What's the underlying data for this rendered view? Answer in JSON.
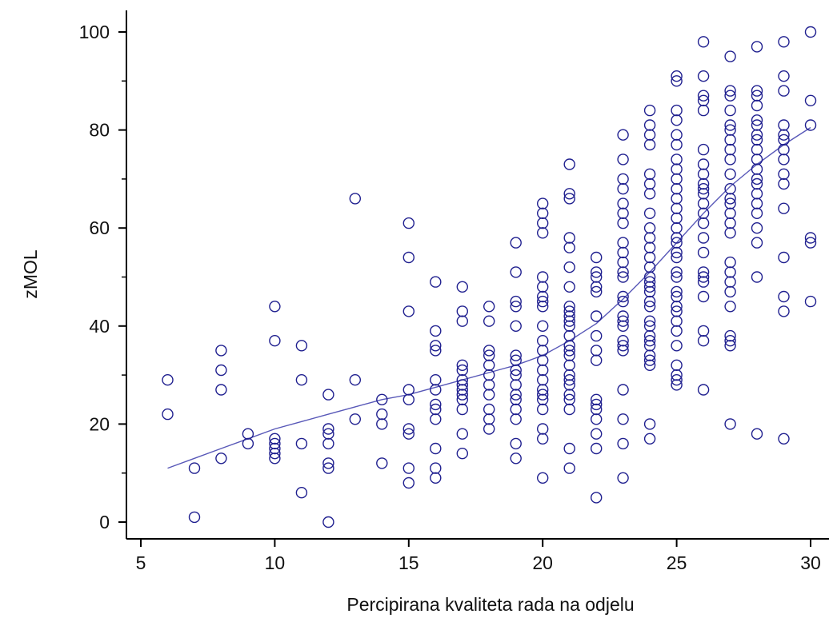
{
  "chart_data": {
    "type": "scatter",
    "title": "",
    "xlabel": "Percipirana kvaliteta rada na odjelu",
    "ylabel": "zMOL",
    "xlim": [
      4,
      30.6
    ],
    "ylim": [
      -3,
      103
    ],
    "xticks": [
      5,
      10,
      15,
      20,
      25,
      30
    ],
    "yticks": [
      0,
      20,
      40,
      60,
      80,
      100
    ],
    "grid": false,
    "legend": "none",
    "colors": {
      "points": "#1f1f8f",
      "line": "#5858b8",
      "axis": "#000000"
    },
    "points": [
      [
        6,
        29
      ],
      [
        6,
        22
      ],
      [
        7,
        11
      ],
      [
        7,
        1
      ],
      [
        8,
        35
      ],
      [
        8,
        31
      ],
      [
        8,
        27
      ],
      [
        8,
        13
      ],
      [
        9,
        18
      ],
      [
        9,
        16
      ],
      [
        10,
        44
      ],
      [
        10,
        37
      ],
      [
        10,
        17
      ],
      [
        10,
        16
      ],
      [
        10,
        15
      ],
      [
        10,
        14
      ],
      [
        10,
        13
      ],
      [
        11,
        36
      ],
      [
        11,
        29
      ],
      [
        11,
        16
      ],
      [
        11,
        6
      ],
      [
        12,
        26
      ],
      [
        12,
        19
      ],
      [
        12,
        18
      ],
      [
        12,
        16
      ],
      [
        12,
        12
      ],
      [
        12,
        11
      ],
      [
        12,
        0
      ],
      [
        13,
        66
      ],
      [
        13,
        29
      ],
      [
        13,
        21
      ],
      [
        14,
        25
      ],
      [
        14,
        22
      ],
      [
        14,
        20
      ],
      [
        14,
        12
      ],
      [
        15,
        61
      ],
      [
        15,
        54
      ],
      [
        15,
        43
      ],
      [
        15,
        27
      ],
      [
        15,
        25
      ],
      [
        15,
        19
      ],
      [
        15,
        18
      ],
      [
        15,
        11
      ],
      [
        15,
        8
      ],
      [
        16,
        49
      ],
      [
        16,
        39
      ],
      [
        16,
        36
      ],
      [
        16,
        35
      ],
      [
        16,
        29
      ],
      [
        16,
        27
      ],
      [
        16,
        24
      ],
      [
        16,
        23
      ],
      [
        16,
        21
      ],
      [
        16,
        15
      ],
      [
        16,
        11
      ],
      [
        16,
        9
      ],
      [
        17,
        48
      ],
      [
        17,
        43
      ],
      [
        17,
        41
      ],
      [
        17,
        32
      ],
      [
        17,
        31
      ],
      [
        17,
        29
      ],
      [
        17,
        28
      ],
      [
        17,
        27
      ],
      [
        17,
        26
      ],
      [
        17,
        25
      ],
      [
        17,
        23
      ],
      [
        17,
        18
      ],
      [
        17,
        14
      ],
      [
        18,
        44
      ],
      [
        18,
        41
      ],
      [
        18,
        35
      ],
      [
        18,
        34
      ],
      [
        18,
        32
      ],
      [
        18,
        30
      ],
      [
        18,
        28
      ],
      [
        18,
        26
      ],
      [
        18,
        23
      ],
      [
        18,
        21
      ],
      [
        18,
        19
      ],
      [
        19,
        57
      ],
      [
        19,
        51
      ],
      [
        19,
        45
      ],
      [
        19,
        44
      ],
      [
        19,
        40
      ],
      [
        19,
        34
      ],
      [
        19,
        33
      ],
      [
        19,
        31
      ],
      [
        19,
        30
      ],
      [
        19,
        28
      ],
      [
        19,
        26
      ],
      [
        19,
        25
      ],
      [
        19,
        23
      ],
      [
        19,
        21
      ],
      [
        19,
        16
      ],
      [
        19,
        13
      ],
      [
        20,
        65
      ],
      [
        20,
        63
      ],
      [
        20,
        61
      ],
      [
        20,
        59
      ],
      [
        20,
        50
      ],
      [
        20,
        48
      ],
      [
        20,
        46
      ],
      [
        20,
        45
      ],
      [
        20,
        44
      ],
      [
        20,
        40
      ],
      [
        20,
        37
      ],
      [
        20,
        35
      ],
      [
        20,
        33
      ],
      [
        20,
        31
      ],
      [
        20,
        29
      ],
      [
        20,
        27
      ],
      [
        20,
        26
      ],
      [
        20,
        25
      ],
      [
        20,
        23
      ],
      [
        20,
        19
      ],
      [
        20,
        17
      ],
      [
        20,
        9
      ],
      [
        21,
        73
      ],
      [
        21,
        67
      ],
      [
        21,
        66
      ],
      [
        21,
        58
      ],
      [
        21,
        56
      ],
      [
        21,
        52
      ],
      [
        21,
        48
      ],
      [
        21,
        44
      ],
      [
        21,
        43
      ],
      [
        21,
        42
      ],
      [
        21,
        41
      ],
      [
        21,
        40
      ],
      [
        21,
        38
      ],
      [
        21,
        36
      ],
      [
        21,
        35
      ],
      [
        21,
        34
      ],
      [
        21,
        32
      ],
      [
        21,
        30
      ],
      [
        21,
        29
      ],
      [
        21,
        28
      ],
      [
        21,
        26
      ],
      [
        21,
        25
      ],
      [
        21,
        23
      ],
      [
        21,
        15
      ],
      [
        21,
        11
      ],
      [
        22,
        54
      ],
      [
        22,
        51
      ],
      [
        22,
        50
      ],
      [
        22,
        48
      ],
      [
        22,
        47
      ],
      [
        22,
        42
      ],
      [
        22,
        38
      ],
      [
        22,
        35
      ],
      [
        22,
        33
      ],
      [
        22,
        25
      ],
      [
        22,
        24
      ],
      [
        22,
        23
      ],
      [
        22,
        21
      ],
      [
        22,
        18
      ],
      [
        22,
        15
      ],
      [
        22,
        5
      ],
      [
        23,
        79
      ],
      [
        23,
        74
      ],
      [
        23,
        70
      ],
      [
        23,
        68
      ],
      [
        23,
        65
      ],
      [
        23,
        63
      ],
      [
        23,
        61
      ],
      [
        23,
        57
      ],
      [
        23,
        55
      ],
      [
        23,
        53
      ],
      [
        23,
        51
      ],
      [
        23,
        50
      ],
      [
        23,
        46
      ],
      [
        23,
        45
      ],
      [
        23,
        42
      ],
      [
        23,
        41
      ],
      [
        23,
        40
      ],
      [
        23,
        37
      ],
      [
        23,
        36
      ],
      [
        23,
        35
      ],
      [
        23,
        27
      ],
      [
        23,
        21
      ],
      [
        23,
        16
      ],
      [
        23,
        9
      ],
      [
        24,
        84
      ],
      [
        24,
        81
      ],
      [
        24,
        79
      ],
      [
        24,
        77
      ],
      [
        24,
        71
      ],
      [
        24,
        69
      ],
      [
        24,
        67
      ],
      [
        24,
        63
      ],
      [
        24,
        60
      ],
      [
        24,
        58
      ],
      [
        24,
        56
      ],
      [
        24,
        54
      ],
      [
        24,
        52
      ],
      [
        24,
        50
      ],
      [
        24,
        49
      ],
      [
        24,
        48
      ],
      [
        24,
        47
      ],
      [
        24,
        45
      ],
      [
        24,
        44
      ],
      [
        24,
        41
      ],
      [
        24,
        40
      ],
      [
        24,
        38
      ],
      [
        24,
        37
      ],
      [
        24,
        36
      ],
      [
        24,
        34
      ],
      [
        24,
        33
      ],
      [
        24,
        32
      ],
      [
        24,
        20
      ],
      [
        24,
        17
      ],
      [
        25,
        91
      ],
      [
        25,
        90
      ],
      [
        25,
        84
      ],
      [
        25,
        82
      ],
      [
        25,
        79
      ],
      [
        25,
        77
      ],
      [
        25,
        74
      ],
      [
        25,
        72
      ],
      [
        25,
        70
      ],
      [
        25,
        68
      ],
      [
        25,
        66
      ],
      [
        25,
        64
      ],
      [
        25,
        62
      ],
      [
        25,
        60
      ],
      [
        25,
        58
      ],
      [
        25,
        57
      ],
      [
        25,
        55
      ],
      [
        25,
        54
      ],
      [
        25,
        51
      ],
      [
        25,
        50
      ],
      [
        25,
        47
      ],
      [
        25,
        46
      ],
      [
        25,
        44
      ],
      [
        25,
        43
      ],
      [
        25,
        41
      ],
      [
        25,
        39
      ],
      [
        25,
        36
      ],
      [
        25,
        32
      ],
      [
        25,
        30
      ],
      [
        25,
        29
      ],
      [
        25,
        28
      ],
      [
        26,
        98
      ],
      [
        26,
        91
      ],
      [
        26,
        87
      ],
      [
        26,
        86
      ],
      [
        26,
        84
      ],
      [
        26,
        76
      ],
      [
        26,
        73
      ],
      [
        26,
        71
      ],
      [
        26,
        69
      ],
      [
        26,
        68
      ],
      [
        26,
        67
      ],
      [
        26,
        65
      ],
      [
        26,
        63
      ],
      [
        26,
        61
      ],
      [
        26,
        58
      ],
      [
        26,
        55
      ],
      [
        26,
        51
      ],
      [
        26,
        50
      ],
      [
        26,
        49
      ],
      [
        26,
        46
      ],
      [
        26,
        39
      ],
      [
        26,
        37
      ],
      [
        26,
        27
      ],
      [
        27,
        95
      ],
      [
        27,
        88
      ],
      [
        27,
        87
      ],
      [
        27,
        84
      ],
      [
        27,
        81
      ],
      [
        27,
        80
      ],
      [
        27,
        78
      ],
      [
        27,
        76
      ],
      [
        27,
        74
      ],
      [
        27,
        71
      ],
      [
        27,
        68
      ],
      [
        27,
        66
      ],
      [
        27,
        65
      ],
      [
        27,
        63
      ],
      [
        27,
        61
      ],
      [
        27,
        59
      ],
      [
        27,
        53
      ],
      [
        27,
        51
      ],
      [
        27,
        49
      ],
      [
        27,
        47
      ],
      [
        27,
        44
      ],
      [
        27,
        38
      ],
      [
        27,
        37
      ],
      [
        27,
        36
      ],
      [
        27,
        20
      ],
      [
        28,
        97
      ],
      [
        28,
        88
      ],
      [
        28,
        87
      ],
      [
        28,
        85
      ],
      [
        28,
        82
      ],
      [
        28,
        81
      ],
      [
        28,
        79
      ],
      [
        28,
        78
      ],
      [
        28,
        76
      ],
      [
        28,
        74
      ],
      [
        28,
        72
      ],
      [
        28,
        70
      ],
      [
        28,
        69
      ],
      [
        28,
        67
      ],
      [
        28,
        65
      ],
      [
        28,
        63
      ],
      [
        28,
        60
      ],
      [
        28,
        57
      ],
      [
        28,
        50
      ],
      [
        28,
        18
      ],
      [
        29,
        98
      ],
      [
        29,
        91
      ],
      [
        29,
        88
      ],
      [
        29,
        81
      ],
      [
        29,
        79
      ],
      [
        29,
        78
      ],
      [
        29,
        76
      ],
      [
        29,
        74
      ],
      [
        29,
        71
      ],
      [
        29,
        69
      ],
      [
        29,
        64
      ],
      [
        29,
        54
      ],
      [
        29,
        46
      ],
      [
        29,
        43
      ],
      [
        29,
        17
      ],
      [
        30,
        100
      ],
      [
        30,
        86
      ],
      [
        30,
        81
      ],
      [
        30,
        58
      ],
      [
        30,
        57
      ],
      [
        30,
        45
      ]
    ],
    "trend_line": [
      [
        6,
        11
      ],
      [
        7,
        13
      ],
      [
        8,
        15
      ],
      [
        9,
        17
      ],
      [
        10,
        19
      ],
      [
        11,
        20.5
      ],
      [
        12,
        22
      ],
      [
        13,
        23.5
      ],
      [
        14,
        25
      ],
      [
        15,
        26
      ],
      [
        16,
        27.5
      ],
      [
        17,
        29
      ],
      [
        18,
        30.5
      ],
      [
        19,
        32
      ],
      [
        20,
        34
      ],
      [
        21,
        37
      ],
      [
        22,
        40.5
      ],
      [
        23,
        45.5
      ],
      [
        24,
        51
      ],
      [
        25,
        57
      ],
      [
        26,
        63
      ],
      [
        27,
        68.5
      ],
      [
        28,
        73
      ],
      [
        29,
        77
      ],
      [
        30,
        80.5
      ]
    ]
  }
}
